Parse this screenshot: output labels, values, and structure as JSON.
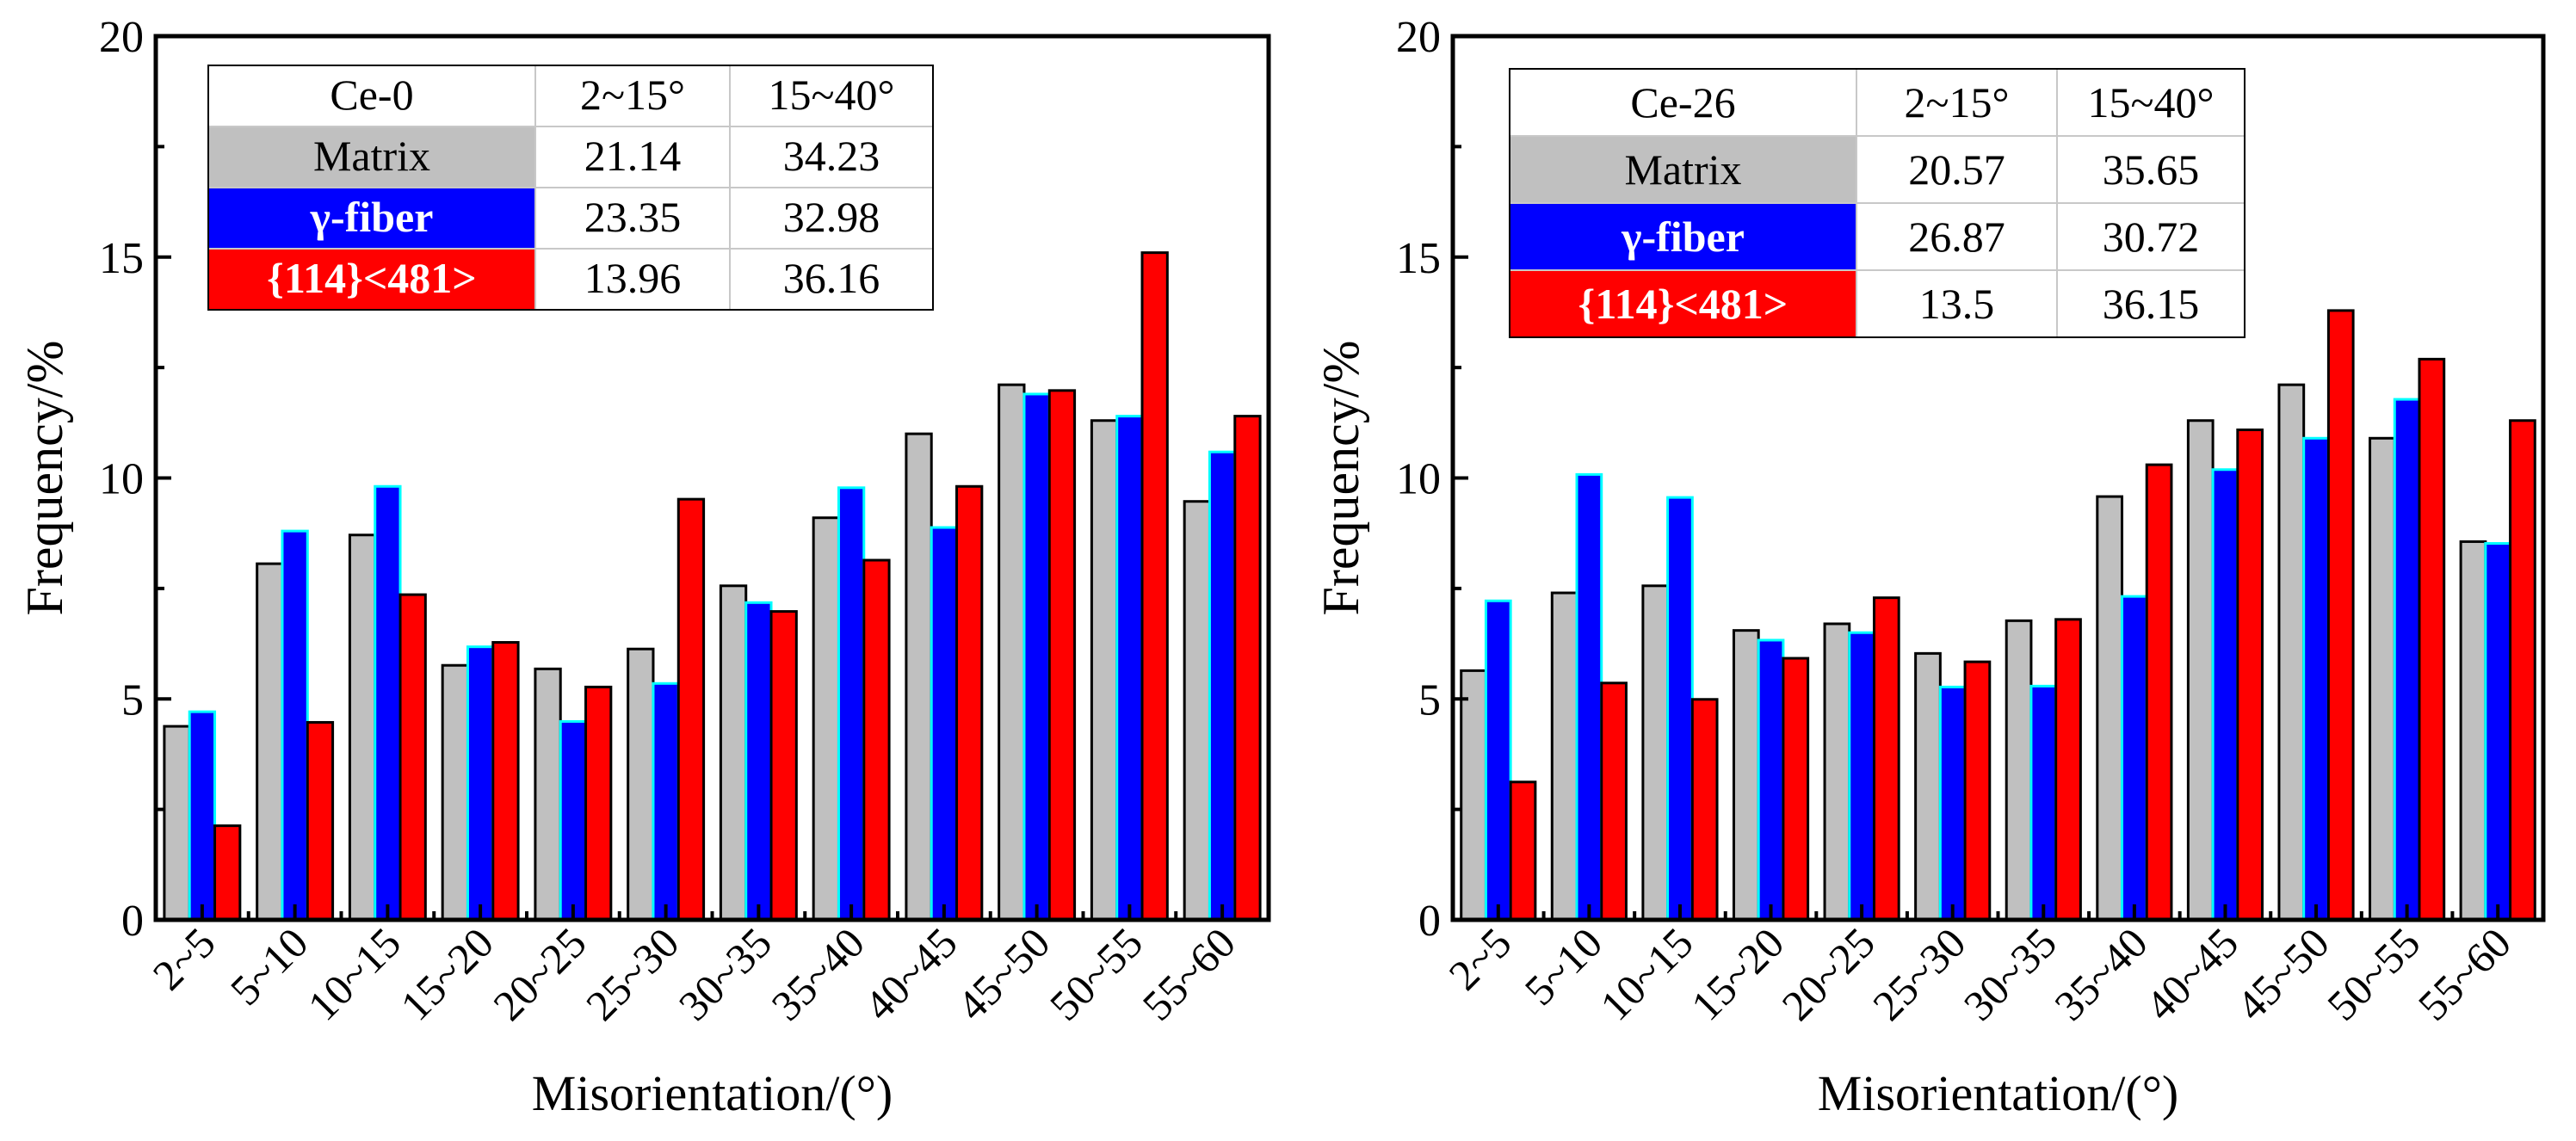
{
  "chart_data": [
    {
      "type": "bar",
      "title": "",
      "xlabel": "Misorientation/(°)",
      "ylabel": "Frequency/%",
      "ylim": [
        0,
        20
      ],
      "yticks": [
        "0",
        "5",
        "10",
        "15",
        "20"
      ],
      "categories": [
        "2~5",
        "5~10",
        "10~15",
        "15~20",
        "20~25",
        "25~30",
        "30~35",
        "35~40",
        "40~45",
        "45~50",
        "50~55",
        "55~60"
      ],
      "series": [
        {
          "name": "Matrix",
          "color": "#c0c0c0",
          "values": [
            4.38,
            8.06,
            8.71,
            5.76,
            5.68,
            6.13,
            7.56,
            9.1,
            11.0,
            12.11,
            11.3,
            9.47
          ]
        },
        {
          "name": "γ-fiber",
          "color": "#0000ff",
          "values": [
            4.71,
            8.8,
            9.81,
            6.18,
            4.49,
            5.35,
            7.18,
            9.78,
            8.88,
            11.9,
            11.4,
            10.59
          ]
        },
        {
          "name": "{114}<481>",
          "color": "#ff0000",
          "values": [
            2.13,
            4.47,
            7.36,
            6.28,
            5.27,
            9.52,
            6.98,
            8.14,
            9.81,
            11.98,
            15.1,
            11.4
          ]
        }
      ],
      "inset_table": {
        "header": [
          "Ce-0",
          "2~15°",
          "15~40°"
        ],
        "rows": [
          [
            "Matrix",
            "21.14",
            "34.23"
          ],
          [
            "γ-fiber",
            "23.35",
            "32.98"
          ],
          [
            "{114}<481>",
            "13.96",
            "36.16"
          ]
        ]
      }
    },
    {
      "type": "bar",
      "title": "",
      "xlabel": "Misorientation/(°)",
      "ylabel": "Frequency/%",
      "ylim": [
        0,
        20
      ],
      "yticks": [
        "0",
        "5",
        "10",
        "15",
        "20"
      ],
      "categories": [
        "2~5",
        "5~10",
        "10~15",
        "15~20",
        "20~25",
        "25~30",
        "30~35",
        "35~40",
        "40~45",
        "45~50",
        "50~55",
        "55~60"
      ],
      "series": [
        {
          "name": "Matrix",
          "color": "#c0c0c0",
          "values": [
            5.64,
            7.4,
            7.56,
            6.55,
            6.7,
            6.03,
            6.77,
            9.58,
            11.3,
            12.11,
            10.9,
            8.56
          ]
        },
        {
          "name": "γ-fiber",
          "color": "#0000ff",
          "values": [
            7.22,
            10.08,
            9.56,
            6.33,
            6.5,
            5.27,
            5.29,
            7.32,
            10.19,
            10.9,
            11.78,
            8.52
          ]
        },
        {
          "name": "{114}<481>",
          "color": "#ff0000",
          "values": [
            3.12,
            5.36,
            4.99,
            5.92,
            7.29,
            5.84,
            6.8,
            10.3,
            11.09,
            13.79,
            12.69,
            11.3
          ]
        }
      ],
      "inset_table": {
        "header": [
          "Ce-26",
          "2~15°",
          "15~40°"
        ],
        "rows": [
          [
            "Matrix",
            "20.57",
            "35.65"
          ],
          [
            "γ-fiber",
            "26.87",
            "30.72"
          ],
          [
            "{114}<481>",
            "13.5",
            "36.15"
          ]
        ]
      }
    }
  ]
}
